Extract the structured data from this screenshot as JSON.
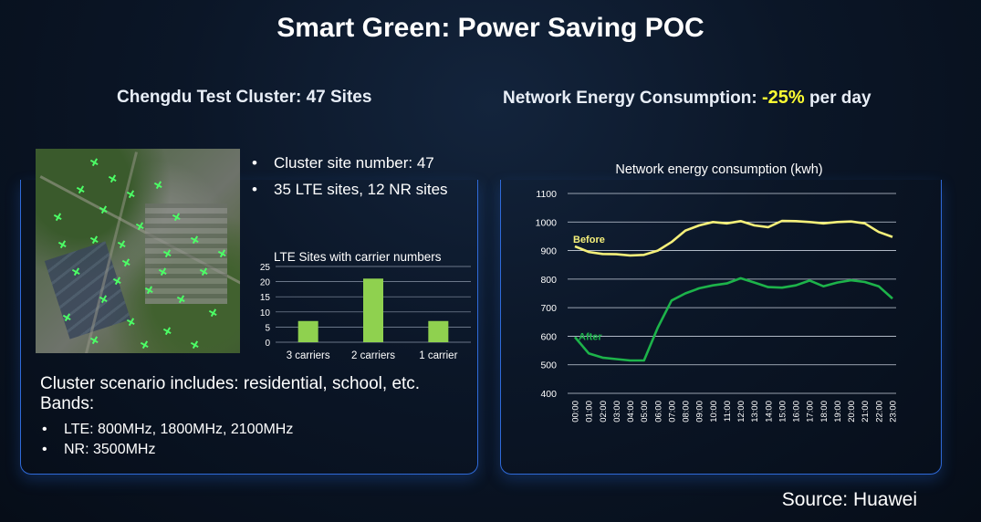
{
  "title": "Smart Green: Power Saving POC",
  "left_heading": "Chengdu Test Cluster: 47 Sites",
  "right_heading": {
    "prefix": "Network Energy Consumption: ",
    "highlight": "-25%",
    "suffix": " per day"
  },
  "bullets": [
    "Cluster site number: 47",
    "35 LTE sites, 12 NR sites"
  ],
  "scenario": {
    "line1": "Cluster scenario includes: residential, school, etc.",
    "line2": "Bands:",
    "bands": [
      "LTE: 800MHz, 1800MHz, 2100MHz",
      "NR: 3500MHz"
    ]
  },
  "source": "Source: Huawei",
  "colors": {
    "highlight": "#ffff33",
    "bar": "#8fd14f",
    "before": "#f5f07a",
    "after": "#1db34a",
    "panel_border": "#2f6ad8"
  },
  "chart_data": [
    {
      "type": "bar",
      "title": "LTE Sites with carrier numbers",
      "categories": [
        "3 carriers",
        "2 carriers",
        "1 carrier"
      ],
      "values": [
        7,
        21,
        7
      ],
      "ylim": [
        0,
        25
      ],
      "yticks": [
        0,
        5,
        10,
        15,
        20,
        25
      ],
      "grid": true
    },
    {
      "type": "line",
      "title": "Network energy consumption (kwh)",
      "x": [
        "00:00",
        "01:00",
        "02:00",
        "03:00",
        "04:00",
        "05:00",
        "06:00",
        "07:00",
        "08:00",
        "09:00",
        "10:00",
        "11:00",
        "12:00",
        "13:00",
        "14:00",
        "15:00",
        "16:00",
        "17:00",
        "18:00",
        "19:00",
        "20:00",
        "21:00",
        "22:00",
        "23:00"
      ],
      "ylim": [
        400,
        1100
      ],
      "yticks": [
        400,
        500,
        600,
        700,
        800,
        900,
        1000,
        1100
      ],
      "grid": true,
      "series": [
        {
          "name": "Before",
          "values": [
            915,
            895,
            888,
            887,
            883,
            885,
            900,
            930,
            970,
            988,
            1000,
            995,
            1003,
            988,
            982,
            1004,
            1003,
            1000,
            995,
            1000,
            1002,
            995,
            965,
            948
          ]
        },
        {
          "name": "After",
          "values": [
            597,
            540,
            525,
            520,
            515,
            515,
            630,
            725,
            750,
            768,
            778,
            785,
            803,
            788,
            772,
            770,
            778,
            795,
            775,
            788,
            796,
            790,
            775,
            732
          ]
        }
      ]
    }
  ]
}
